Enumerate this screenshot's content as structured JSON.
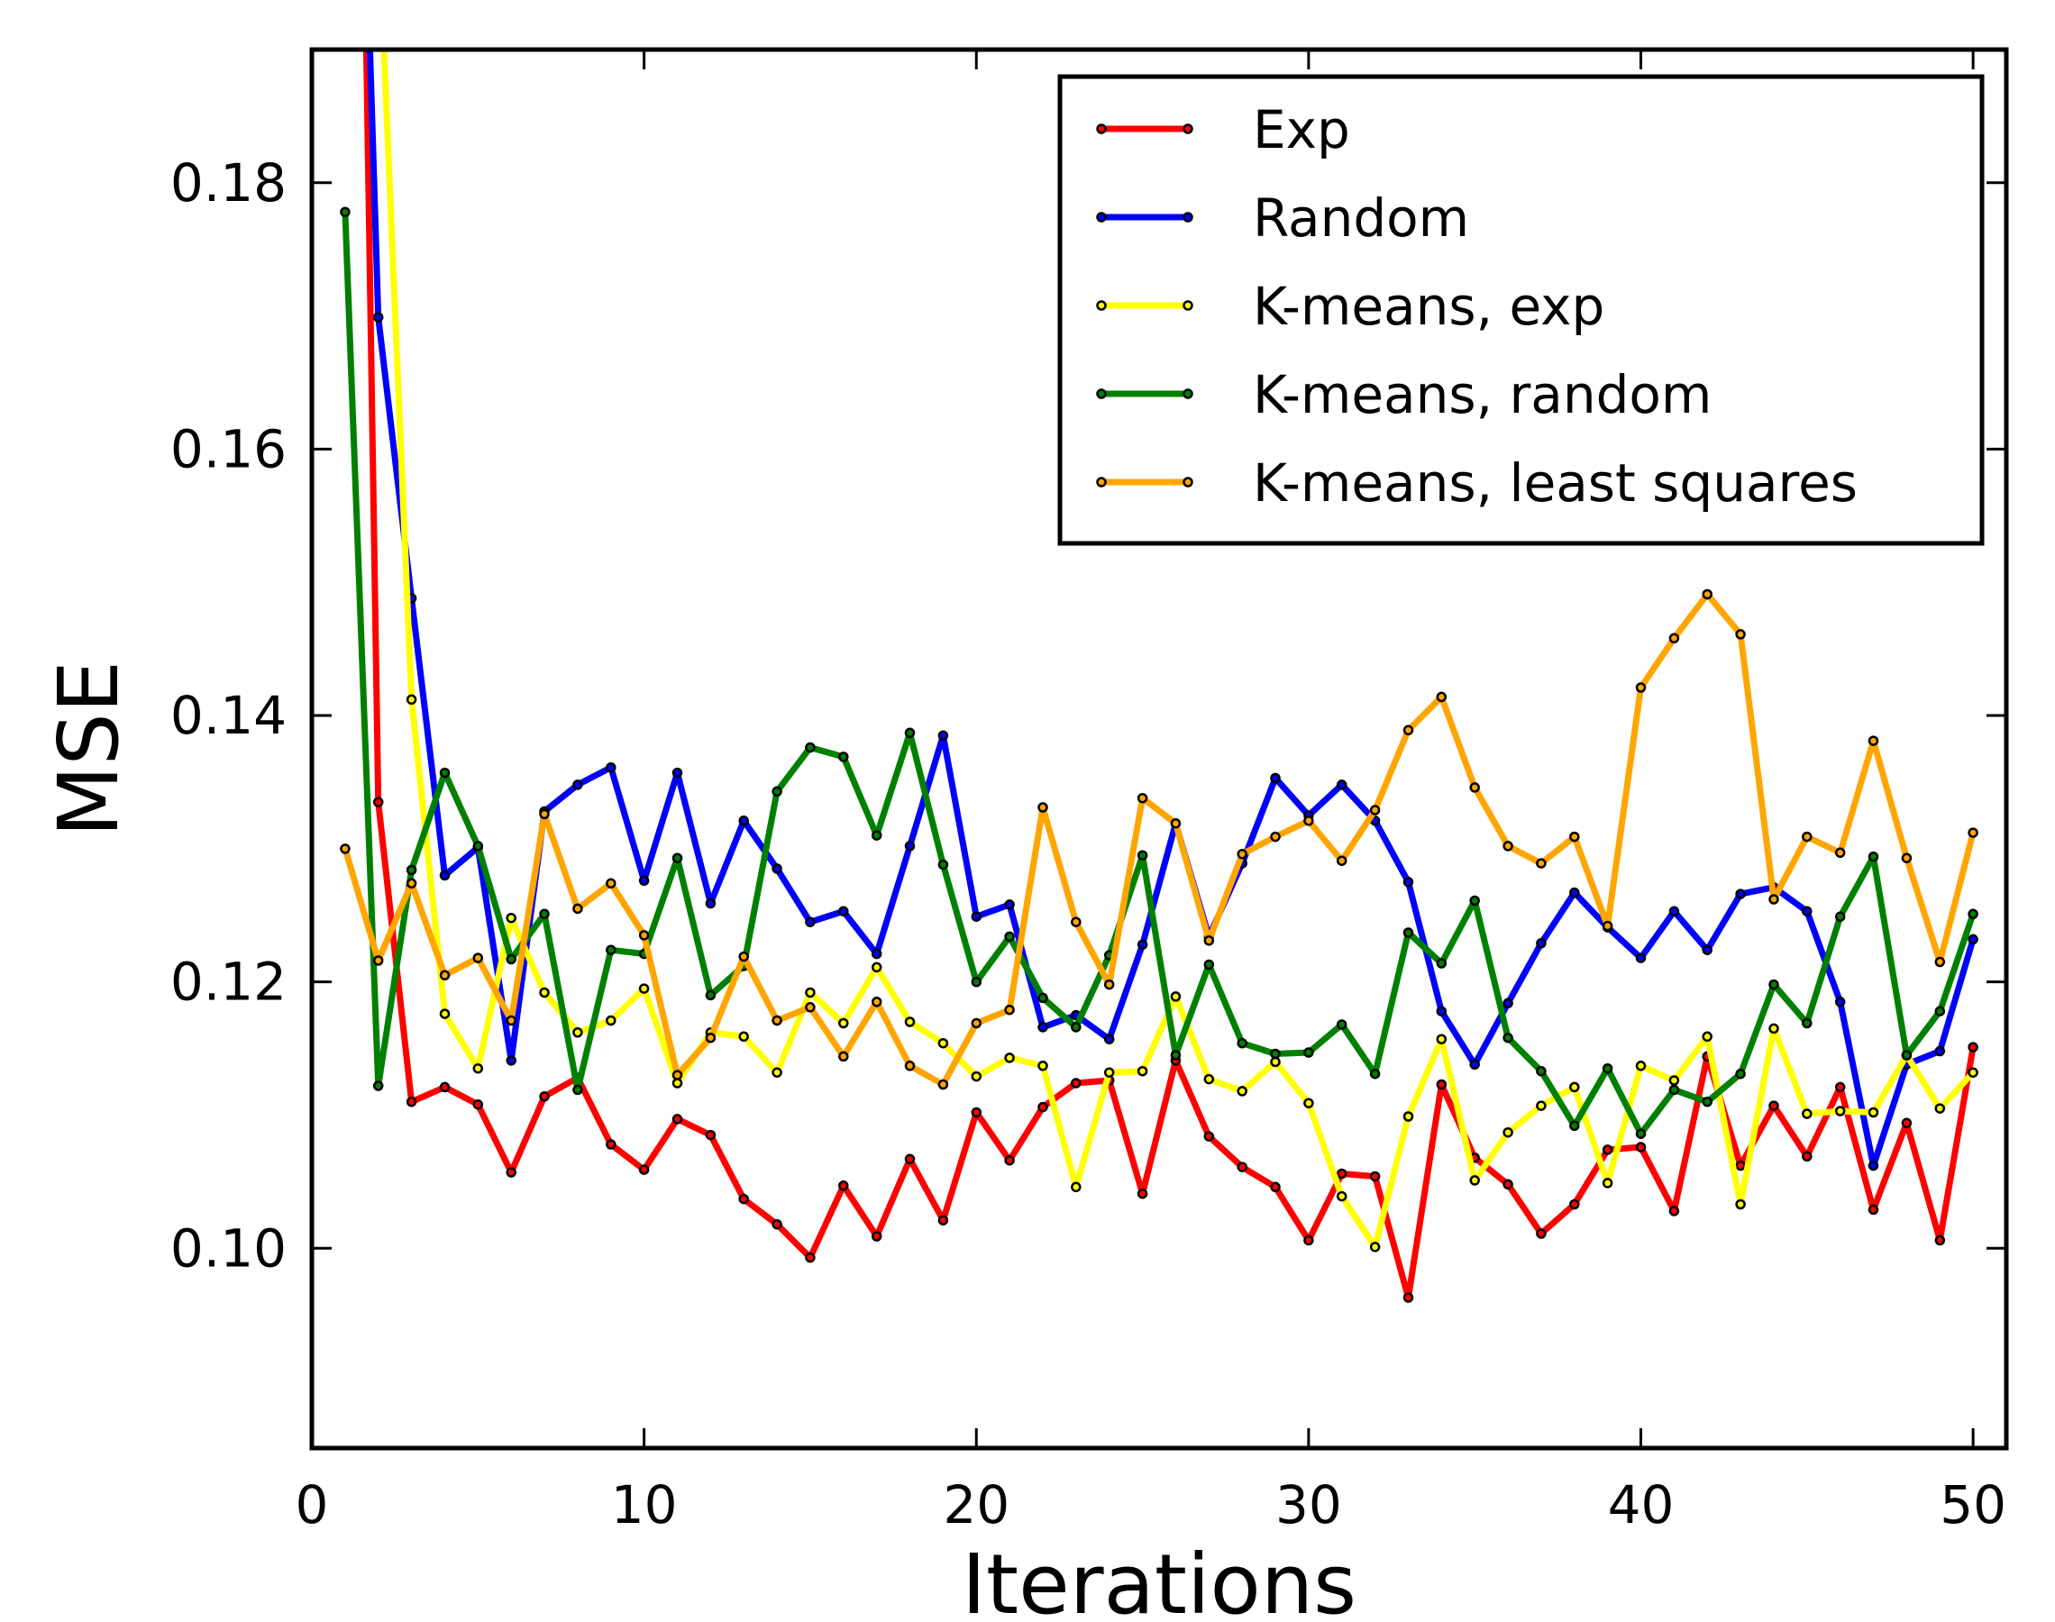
{
  "chart_data": {
    "type": "line",
    "xlabel": "Iterations",
    "ylabel": "MSE",
    "xlim": [
      0,
      51
    ],
    "ylim": [
      0.085,
      0.19
    ],
    "x_ticks": [
      "0",
      "10",
      "20",
      "30",
      "40",
      "50"
    ],
    "y_ticks": [
      "0.10",
      "0.12",
      "0.14",
      "0.16",
      "0.18"
    ],
    "legend_position": "top-right",
    "grid": false,
    "x": [
      1,
      2,
      3,
      4,
      5,
      6,
      7,
      8,
      9,
      10,
      11,
      12,
      13,
      14,
      15,
      16,
      17,
      18,
      19,
      20,
      21,
      22,
      23,
      24,
      25,
      26,
      27,
      28,
      29,
      30,
      31,
      32,
      33,
      34,
      35,
      36,
      37,
      38,
      39,
      40,
      41,
      42,
      43,
      44,
      45,
      46,
      47,
      48,
      49,
      50
    ],
    "series": [
      {
        "name": "Exp",
        "color": "#ff0000",
        "values": [
          0.29,
          0.1335,
          0.111,
          0.1121,
          0.1108,
          0.1057,
          0.1114,
          0.1128,
          0.1078,
          0.1059,
          0.1097,
          0.1085,
          0.1037,
          0.1018,
          0.0993,
          0.1047,
          0.1009,
          0.1067,
          0.1021,
          0.1102,
          0.1066,
          0.1106,
          0.1124,
          0.1126,
          0.1041,
          0.1141,
          0.1084,
          0.1061,
          0.1046,
          0.1006,
          0.1056,
          0.1054,
          0.0963,
          0.1123,
          0.1068,
          0.1048,
          0.1011,
          0.1033,
          0.1074,
          0.1076,
          0.1028,
          0.1144,
          0.1062,
          0.1107,
          0.1069,
          0.1121,
          0.1029,
          0.1094,
          0.1006,
          0.1151
        ]
      },
      {
        "name": "Random",
        "color": "#0000ff",
        "values": [
          0.25,
          0.1699,
          0.1488,
          0.128,
          0.1301,
          0.1141,
          0.1328,
          0.1348,
          0.1361,
          0.1276,
          0.1357,
          0.1259,
          0.1321,
          0.1285,
          0.1245,
          0.1253,
          0.1221,
          0.1302,
          0.1385,
          0.1249,
          0.1258,
          0.1166,
          0.1175,
          0.1157,
          0.1228,
          0.1319,
          0.1234,
          0.1289,
          0.1353,
          0.1325,
          0.1348,
          0.1321,
          0.1275,
          0.1178,
          0.1138,
          0.1184,
          0.1229,
          0.1267,
          0.1241,
          0.1218,
          0.1253,
          0.1224,
          0.1266,
          0.1271,
          0.1253,
          0.1185,
          0.1062,
          0.1138,
          0.1148,
          0.1232
        ]
      },
      {
        "name": "K-means, exp",
        "color": "#ffff00",
        "values": [
          0.26,
          0.2,
          0.1412,
          0.1176,
          0.1135,
          0.1248,
          0.1192,
          0.1162,
          0.1171,
          0.1195,
          0.1124,
          0.1162,
          0.1159,
          0.1132,
          0.1192,
          0.1169,
          0.1211,
          0.117,
          0.1154,
          0.1129,
          0.1143,
          0.1137,
          0.1046,
          0.1132,
          0.1133,
          0.1189,
          0.1127,
          0.1118,
          0.114,
          0.1109,
          0.1039,
          0.1001,
          0.1099,
          0.1157,
          0.1051,
          0.1087,
          0.1107,
          0.1121,
          0.1049,
          0.1137,
          0.1126,
          0.1159,
          0.1033,
          0.1165,
          0.1101,
          0.1103,
          0.1102,
          0.1145,
          0.1105,
          0.1132
        ]
      },
      {
        "name": "K-means, random",
        "color": "#008000",
        "values": [
          0.1778,
          0.1122,
          0.1284,
          0.1357,
          0.1302,
          0.1217,
          0.1251,
          0.1119,
          0.1224,
          0.1221,
          0.1293,
          0.119,
          0.1212,
          0.1343,
          0.1376,
          0.1369,
          0.131,
          0.1387,
          0.1288,
          0.12,
          0.1234,
          0.1188,
          0.1166,
          0.122,
          0.1295,
          0.1145,
          0.1213,
          0.1154,
          0.1146,
          0.1147,
          0.1168,
          0.1131,
          0.1237,
          0.1214,
          0.1261,
          0.1158,
          0.1133,
          0.1092,
          0.1135,
          0.1086,
          0.1119,
          0.111,
          0.1131,
          0.1198,
          0.1169,
          0.1249,
          0.1294,
          0.1145,
          0.1178,
          0.1251
        ]
      },
      {
        "name": "K-means, least squares",
        "color": "#ffa500",
        "values": [
          0.13,
          0.1216,
          0.1274,
          0.1205,
          0.1218,
          0.1171,
          0.1326,
          0.1255,
          0.1274,
          0.1235,
          0.113,
          0.1158,
          0.1219,
          0.1171,
          0.1181,
          0.1144,
          0.1185,
          0.1137,
          0.1123,
          0.1169,
          0.1179,
          0.1331,
          0.1245,
          0.1198,
          0.1338,
          0.1319,
          0.1231,
          0.1296,
          0.1309,
          0.1321,
          0.1291,
          0.1329,
          0.1389,
          0.1414,
          0.1346,
          0.1302,
          0.1289,
          0.1309,
          0.1242,
          0.1421,
          0.1458,
          0.1491,
          0.1461,
          0.1262,
          0.1309,
          0.1297,
          0.1381,
          0.1293,
          0.1215,
          0.1312
        ]
      }
    ]
  }
}
